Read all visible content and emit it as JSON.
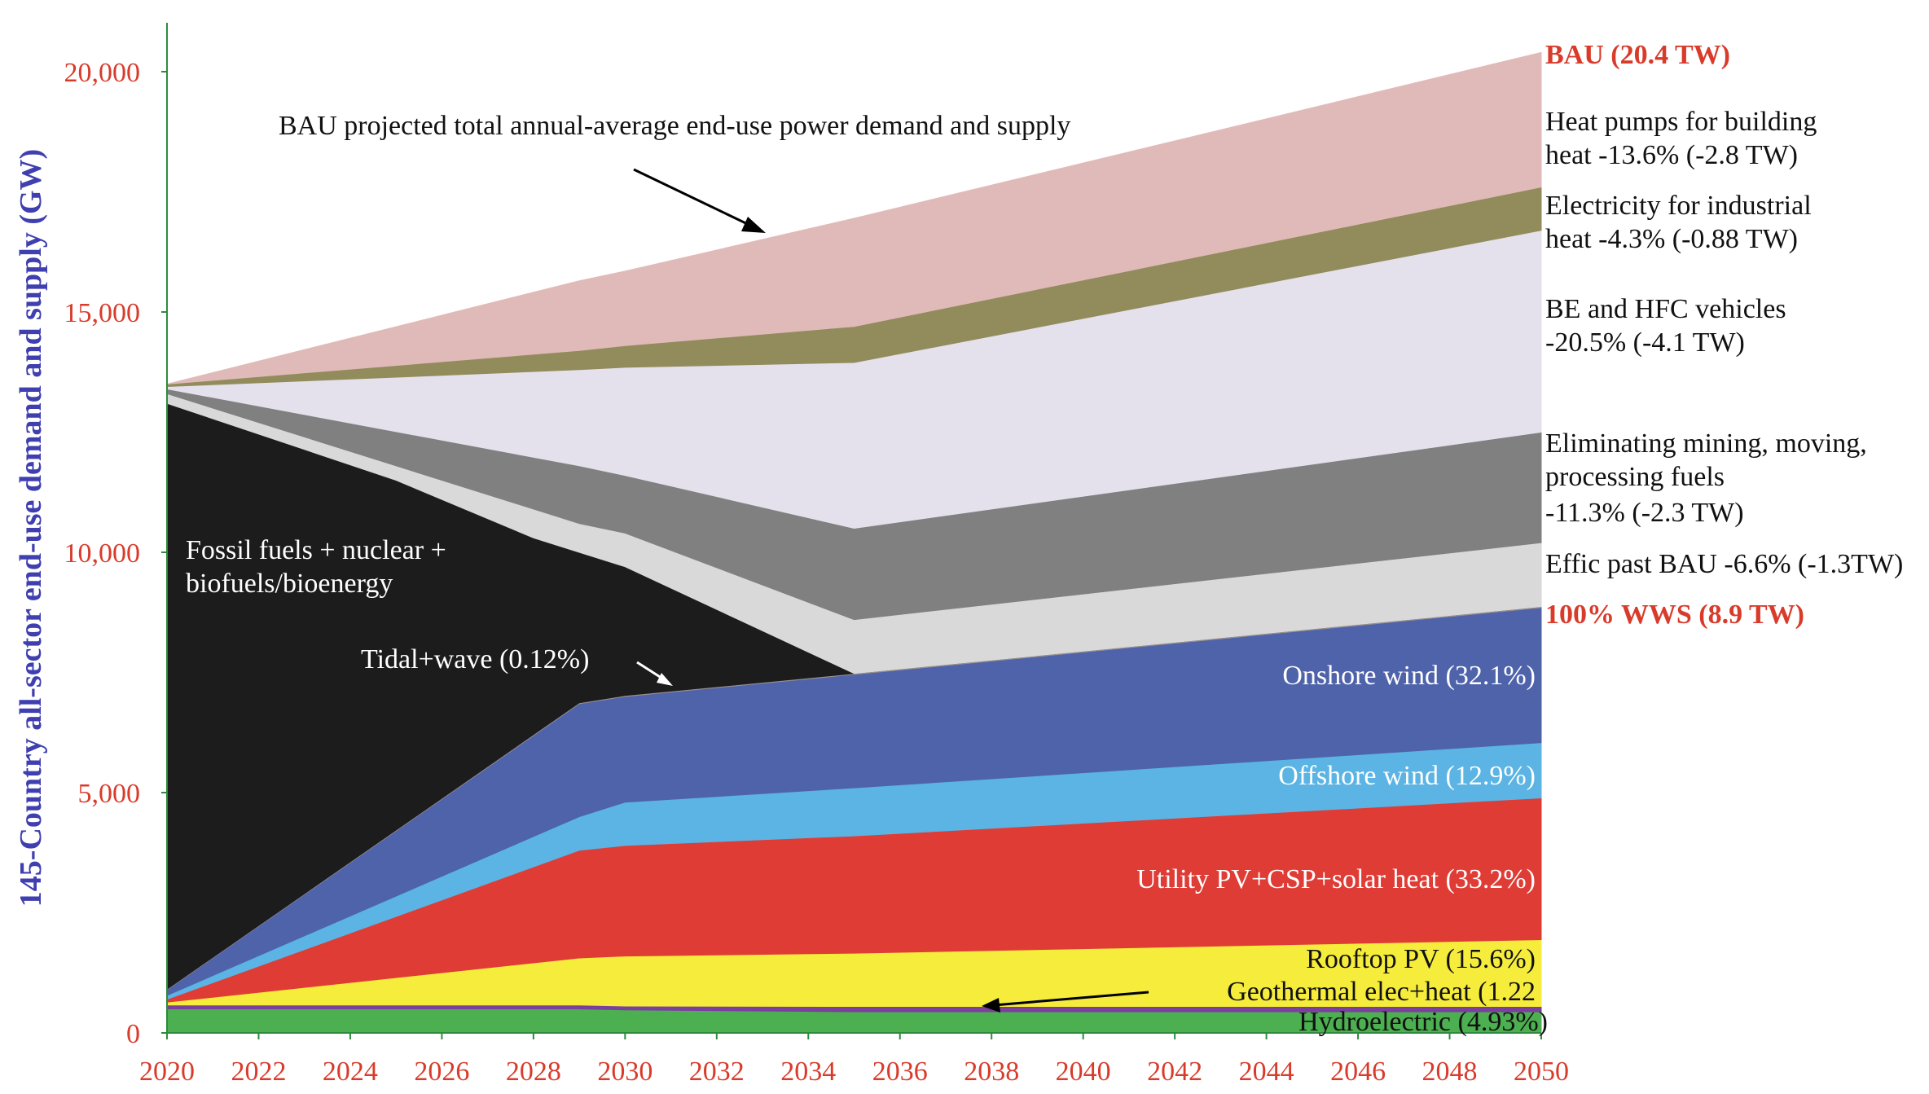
{
  "chart_data": {
    "type": "area",
    "ylabel": "145-Country all-sector end-use demand and supply (GW)",
    "x": [
      2020,
      2029,
      2030,
      2035,
      2050
    ],
    "xticks": [
      "2020",
      "2022",
      "2024",
      "2026",
      "2028",
      "2030",
      "2032",
      "2034",
      "2036",
      "2038",
      "2040",
      "2042",
      "2044",
      "2046",
      "2048",
      "2050"
    ],
    "yticks": [
      "0",
      "5,000",
      "10,000",
      "15,000",
      "20,000"
    ],
    "xlim": [
      2020,
      2050
    ],
    "ylim": [
      0,
      21000
    ],
    "grid": false,
    "legend": "none (direct labels at right)",
    "layers": [
      {
        "name": "Hydroelectric (4.93%)",
        "color": "#4caf50",
        "top": [
          500,
          500,
          480,
          440,
          440
        ]
      },
      {
        "name": "Geothermal elec+heat (1.22",
        "color": "#7b3f9e",
        "top": [
          580,
          580,
          560,
          550,
          550
        ]
      },
      {
        "name": "Rooftop PV (15.6%)",
        "color": "#f5ec3c",
        "top": [
          640,
          1560,
          1600,
          1660,
          1940
        ]
      },
      {
        "name": "Utility PV+CSP+solar heat (33.2%)",
        "color": "#e03c36",
        "top": [
          700,
          3800,
          3900,
          4100,
          4890
        ]
      },
      {
        "name": "Offshore wind (12.9%)",
        "color": "#5bb4e3",
        "top": [
          780,
          4500,
          4800,
          5100,
          6040
        ]
      },
      {
        "name": "Onshore wind (32.1%)",
        "color": "#4f63aa",
        "top": [
          900,
          6850,
          7000,
          7460,
          8850
        ]
      },
      {
        "name": "Tidal+wave (0.12%)",
        "color": "#9a8f8f",
        "top": [
          910,
          6870,
          7020,
          7480,
          8870
        ]
      },
      {
        "name": "Fossil fuels + nuclear + biofuels/bioenergy",
        "color": "#1c1c1c",
        "x": [
          2020,
          2025,
          2028,
          2029,
          2030,
          2035,
          2050
        ],
        "top": [
          13100,
          11500,
          10300,
          10000,
          9700,
          7480,
          8870
        ]
      },
      {
        "name": "Effic past BAU -6.6% (-1.3TW)",
        "color": "#d9d9d9",
        "top": [
          13300,
          10600,
          10400,
          8600,
          10200
        ]
      },
      {
        "name": "Eliminating mining, moving, processing fuels -11.3% (-2.3 TW)",
        "color": "#808080",
        "top": [
          13400,
          11800,
          11600,
          10500,
          12500
        ]
      },
      {
        "name": "BE and HFC vehicles -20.5% (-4.1 TW)",
        "color": "#e4e1ec",
        "top": [
          13450,
          13800,
          13850,
          13950,
          16700
        ]
      },
      {
        "name": "Electricity for industrial heat -4.3% (-0.88 TW)",
        "color": "#928c5c",
        "top": [
          13500,
          14200,
          14300,
          14700,
          17600
        ]
      },
      {
        "name": "Heat pumps for building heat -13.6% (-2.8 TW)",
        "color": "#e0bab8",
        "top": [
          13500,
          15650,
          15850,
          16950,
          20400
        ]
      }
    ],
    "labels": {
      "bau_total": "BAU (20.4 TW)",
      "heat_pumps": [
        "Heat pumps for building",
        "heat -13.6% (-2.8 TW)"
      ],
      "industrial": [
        "Electricity for industrial",
        "heat -4.3% (-0.88 TW)"
      ],
      "vehicles": [
        "BE and HFC vehicles",
        "-20.5% (-4.1 TW)"
      ],
      "mining": [
        "Eliminating mining, moving,",
        "processing fuels",
        "-11.3% (-2.3 TW)"
      ],
      "effic": "Effic past BAU -6.6% (-1.3TW)",
      "wws_total": "100% WWS (8.9 TW)",
      "onshore": "Onshore wind (32.1%)",
      "offshore": "Offshore wind (12.9%)",
      "utility": "Utility PV+CSP+solar heat (33.2%)",
      "rooftop": "Rooftop PV (15.6%)",
      "geothermal": "Geothermal elec+heat (1.22",
      "hydro": "Hydroelectric (4.93%)",
      "fossil": [
        "Fossil fuels + nuclear +",
        "biofuels/bioenergy"
      ],
      "tidal": "Tidal+wave (0.12%)",
      "bau_note": "BAU projected total annual-average end-use power demand and supply"
    },
    "colors": {
      "axis_text": "#d93b2b",
      "ylabel_text": "#3f3fb0",
      "axis_line": "#2e8b3d"
    }
  }
}
